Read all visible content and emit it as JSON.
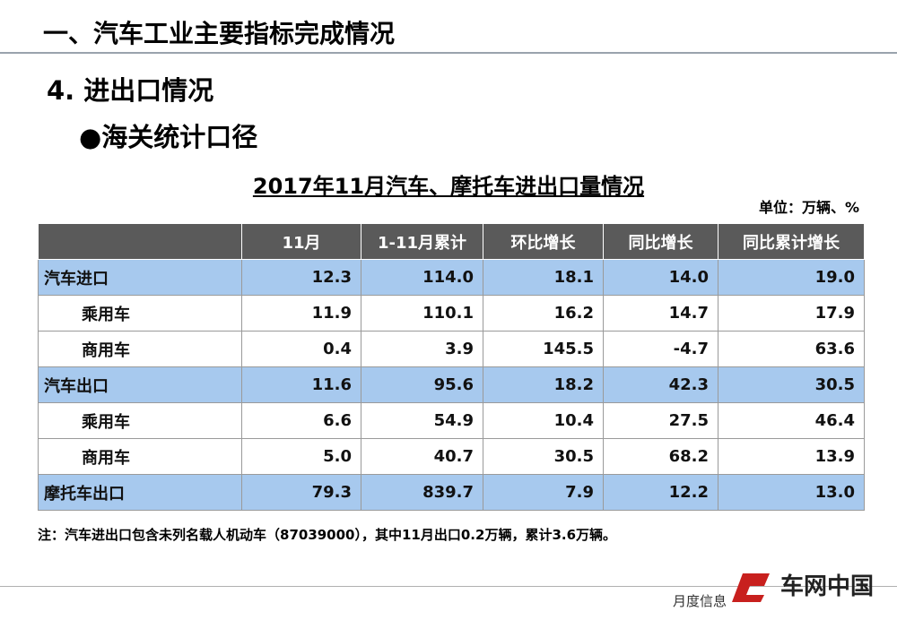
{
  "header": {
    "title": "一、汽车工业主要指标完成情况"
  },
  "section": {
    "title": "4. 进出口情况",
    "subtitle": "●海关统计口径"
  },
  "table": {
    "title": "2017年11月汽车、摩托车进出口量情况",
    "unit": "单位：万辆、%",
    "columns": [
      "",
      "11月",
      "1-11月累计",
      "环比增长",
      "同比增长",
      "同比累计增长"
    ],
    "rows": [
      [
        "汽车进口",
        "12.3",
        "114.0",
        "18.1",
        "14.0",
        "19.0"
      ],
      [
        "乘用车",
        "11.9",
        "110.1",
        "16.2",
        "14.7",
        "17.9"
      ],
      [
        "商用车",
        "0.4",
        "3.9",
        "145.5",
        "-4.7",
        "63.6"
      ],
      [
        "汽车出口",
        "11.6",
        "95.6",
        "18.2",
        "42.3",
        "30.5"
      ],
      [
        "乘用车",
        "6.6",
        "54.9",
        "10.4",
        "27.5",
        "46.4"
      ],
      [
        "商用车",
        "5.0",
        "40.7",
        "30.5",
        "68.2",
        "13.9"
      ],
      [
        "摩托车出口",
        "79.3",
        "839.7",
        "7.9",
        "12.2",
        "13.0"
      ]
    ],
    "highlight_rows": [
      0,
      3,
      6
    ]
  },
  "note": "注：汽车进出口包含未列名载人机动车（87039000），其中11月出口0.2万辆，累计3.6万辆。",
  "footer": {
    "text": "月度信息",
    "logo": "车网中国"
  }
}
